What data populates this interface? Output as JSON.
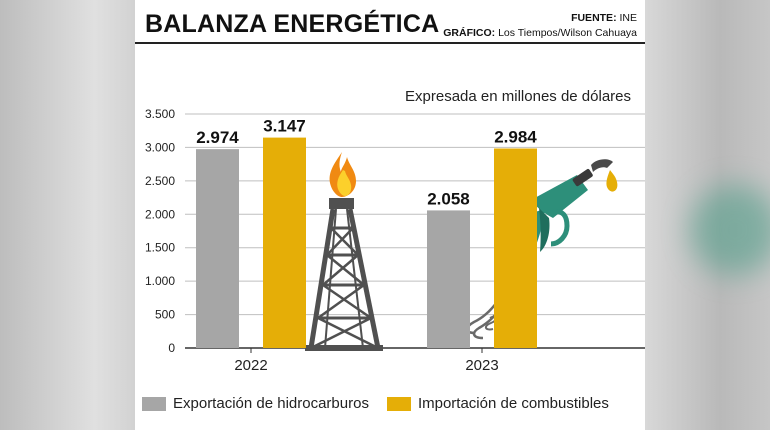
{
  "header": {
    "title": "BALANZA ENERGÉTICA",
    "source_label": "FUENTE:",
    "source_value": "INE",
    "graphic_label": "GRÁFICO:",
    "graphic_value": "Los Tiempos/Wilson Cahuaya"
  },
  "note": "Expresada en millones de dólares",
  "colors": {
    "export": "#a6a6a6",
    "import": "#e5ae07",
    "grid": "#bfbfbf",
    "pump": "#2d8f7a",
    "derrick": "#505050"
  },
  "icons": [
    "oil-derrick-icon",
    "flame-icon",
    "fuel-pump-icon"
  ],
  "chart_data": {
    "type": "bar",
    "categories": [
      "2022",
      "2023"
    ],
    "series": [
      {
        "name": "Exportación de hidrocarburos",
        "values": [
          2974,
          2058
        ]
      },
      {
        "name": "Importación de combustibles",
        "values": [
          3147,
          2984
        ]
      }
    ],
    "value_labels": [
      [
        "2.974",
        "2.058"
      ],
      [
        "3.147",
        "2.984"
      ]
    ],
    "ylim": [
      0,
      3500
    ],
    "yticks": [
      0,
      500,
      1000,
      1500,
      2000,
      2500,
      3000,
      3500
    ],
    "ytick_labels": [
      "0",
      "500",
      "1.000",
      "1.500",
      "2.000",
      "2.500",
      "3.000",
      "3.500"
    ],
    "grid": true,
    "legend": "bottom-left"
  }
}
